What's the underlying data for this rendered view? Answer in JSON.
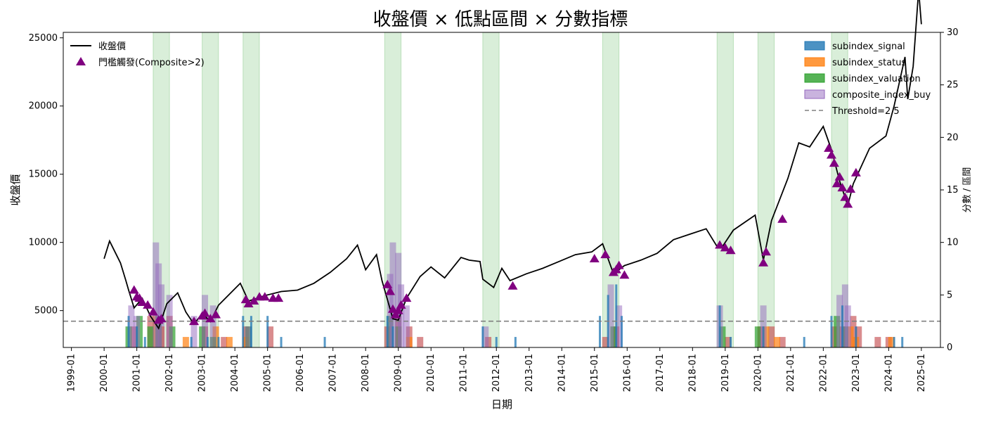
{
  "chart_data": {
    "type": "line",
    "title": "收盤價 × 低點區間 × 分數指標",
    "xlabel": "日期",
    "ylabel_left": "收盤價",
    "ylabel_right": "分數 / 區間",
    "x_ticks": [
      "1999-01",
      "2000-01",
      "2001-01",
      "2002-01",
      "2003-01",
      "2004-01",
      "2005-01",
      "2006-01",
      "2007-01",
      "2008-01",
      "2009-01",
      "2010-01",
      "2011-01",
      "2012-01",
      "2013-01",
      "2014-01",
      "2015-01",
      "2016-01",
      "2017-01",
      "2018-01",
      "2019-01",
      "2020-01",
      "2021-01",
      "2022-01",
      "2023-01",
      "2024-01",
      "2025-01"
    ],
    "xlim": [
      "1998-10-01",
      "2025-08-01"
    ],
    "ylim_left": [
      2300,
      25400
    ],
    "yticks_left": [
      5000,
      10000,
      15000,
      20000,
      25000
    ],
    "ylim_right": [
      0,
      30
    ],
    "yticks_right": [
      0,
      5,
      10,
      15,
      20,
      25,
      30
    ],
    "threshold": 2.5,
    "legend_left": [
      {
        "name": "收盤價",
        "kind": "line",
        "color": "#000000"
      },
      {
        "name": "門檻觸發(Composite>2)",
        "kind": "marker",
        "color": "#800080"
      }
    ],
    "legend_right": [
      {
        "name": "subindex_signal",
        "kind": "patch",
        "color": "#1f77b4"
      },
      {
        "name": "subindex_status",
        "kind": "patch",
        "color": "#ff7f0e"
      },
      {
        "name": "subindex_valuation",
        "kind": "patch",
        "color": "#2ca02c"
      },
      {
        "name": "composite_index_buy",
        "kind": "patch",
        "color": "#9467bd"
      },
      {
        "name": "Threshold=2.5",
        "kind": "dashed",
        "color": "#808080"
      }
    ],
    "low_zones": [
      [
        "2001-07",
        "2002-01"
      ],
      [
        "2003-01",
        "2003-07"
      ],
      [
        "2004-04",
        "2004-10"
      ],
      [
        "2008-08",
        "2009-02"
      ],
      [
        "2011-08",
        "2012-02"
      ],
      [
        "2015-04",
        "2015-10"
      ],
      [
        "2018-10",
        "2019-04"
      ],
      [
        "2020-01",
        "2020-07"
      ],
      [
        "2022-04",
        "2022-10"
      ]
    ],
    "close_series": [
      [
        "2000-01",
        8800
      ],
      [
        "2000-03",
        10100
      ],
      [
        "2000-05",
        9300
      ],
      [
        "2000-07",
        8500
      ],
      [
        "2000-09",
        7200
      ],
      [
        "2000-10",
        6500
      ],
      [
        "2000-12",
        5200
      ],
      [
        "2001-03",
        5900
      ],
      [
        "2001-06",
        4600
      ],
      [
        "2001-09",
        3700
      ],
      [
        "2001-12",
        5500
      ],
      [
        "2002-04",
        6300
      ],
      [
        "2002-07",
        4900
      ],
      [
        "2002-10",
        4000
      ],
      [
        "2003-01",
        4800
      ],
      [
        "2003-04",
        4200
      ],
      [
        "2003-07",
        5400
      ],
      [
        "2003-10",
        6000
      ],
      [
        "2004-03",
        7000
      ],
      [
        "2004-06",
        5700
      ],
      [
        "2004-09",
        5900
      ],
      [
        "2004-12",
        6100
      ],
      [
        "2005-06",
        6400
      ],
      [
        "2005-12",
        6500
      ],
      [
        "2006-06",
        7000
      ],
      [
        "2006-12",
        7800
      ],
      [
        "2007-06",
        8800
      ],
      [
        "2007-10",
        9800
      ],
      [
        "2008-01",
        8000
      ],
      [
        "2008-05",
        9100
      ],
      [
        "2008-07",
        7200
      ],
      [
        "2008-11",
        4400
      ],
      [
        "2009-01",
        4300
      ],
      [
        "2009-04",
        5900
      ],
      [
        "2009-09",
        7500
      ],
      [
        "2010-01",
        8200
      ],
      [
        "2010-06",
        7400
      ],
      [
        "2010-12",
        8900
      ],
      [
        "2011-03",
        8700
      ],
      [
        "2011-07",
        8600
      ],
      [
        "2011-08",
        7300
      ],
      [
        "2011-12",
        6700
      ],
      [
        "2012-03",
        8100
      ],
      [
        "2012-06",
        7200
      ],
      [
        "2012-12",
        7700
      ],
      [
        "2013-06",
        8100
      ],
      [
        "2013-12",
        8600
      ],
      [
        "2014-06",
        9100
      ],
      [
        "2014-12",
        9300
      ],
      [
        "2015-04",
        9900
      ],
      [
        "2015-08",
        7700
      ],
      [
        "2015-12",
        8300
      ],
      [
        "2016-06",
        8700
      ],
      [
        "2016-12",
        9200
      ],
      [
        "2017-06",
        10200
      ],
      [
        "2017-12",
        10600
      ],
      [
        "2018-06",
        11000
      ],
      [
        "2018-10",
        9700
      ],
      [
        "2018-12",
        9700
      ],
      [
        "2019-04",
        10900
      ],
      [
        "2019-12",
        12000
      ],
      [
        "2020-03",
        8700
      ],
      [
        "2020-06",
        11600
      ],
      [
        "2020-12",
        14700
      ],
      [
        "2021-04",
        17300
      ],
      [
        "2021-08",
        17000
      ],
      [
        "2022-01",
        18500
      ],
      [
        "2022-04",
        16800
      ],
      [
        "2022-07",
        14500
      ],
      [
        "2022-10",
        12700
      ],
      [
        "2022-12",
        14300
      ],
      [
        "2023-06",
        16900
      ],
      [
        "2023-12",
        17800
      ],
      [
        "2024-03",
        20000
      ],
      [
        "2024-07",
        23600
      ],
      [
        "2024-08",
        20500
      ],
      [
        "2024-10",
        22900
      ],
      [
        "2024-12",
        28500
      ],
      [
        "2025-01",
        26000
      ]
    ],
    "trigger_markers": [
      [
        "2000-12",
        6500
      ],
      [
        "2001-01",
        6000
      ],
      [
        "2001-02",
        5900
      ],
      [
        "2001-03",
        5600
      ],
      [
        "2001-05",
        5400
      ],
      [
        "2001-07",
        4900
      ],
      [
        "2001-09",
        4300
      ],
      [
        "2001-10",
        4400
      ],
      [
        "2002-10",
        4200
      ],
      [
        "2003-01",
        4600
      ],
      [
        "2003-02",
        4800
      ],
      [
        "2003-04",
        4400
      ],
      [
        "2003-06",
        4700
      ],
      [
        "2004-05",
        5800
      ],
      [
        "2004-06",
        5500
      ],
      [
        "2004-08",
        5700
      ],
      [
        "2004-10",
        6000
      ],
      [
        "2004-12",
        6000
      ],
      [
        "2005-03",
        5900
      ],
      [
        "2005-05",
        5900
      ],
      [
        "2008-09",
        6900
      ],
      [
        "2008-10",
        6400
      ],
      [
        "2008-11",
        5100
      ],
      [
        "2008-12",
        4700
      ],
      [
        "2009-01",
        5000
      ],
      [
        "2009-02",
        5400
      ],
      [
        "2009-04",
        5900
      ],
      [
        "2012-07",
        6800
      ],
      [
        "2015-01",
        8800
      ],
      [
        "2015-05",
        9100
      ],
      [
        "2015-08",
        7800
      ],
      [
        "2015-09",
        8000
      ],
      [
        "2015-10",
        8300
      ],
      [
        "2015-12",
        7600
      ],
      [
        "2018-11",
        9800
      ],
      [
        "2019-01",
        9600
      ],
      [
        "2019-03",
        9400
      ],
      [
        "2020-03",
        8500
      ],
      [
        "2020-04",
        9300
      ],
      [
        "2020-10",
        11700
      ],
      [
        "2022-03",
        16900
      ],
      [
        "2022-04",
        16400
      ],
      [
        "2022-05",
        15800
      ],
      [
        "2022-06",
        14300
      ],
      [
        "2022-07",
        14800
      ],
      [
        "2022-08",
        14000
      ],
      [
        "2022-09",
        13300
      ],
      [
        "2022-10",
        12800
      ],
      [
        "2022-11",
        13900
      ],
      [
        "2023-01",
        15100
      ]
    ],
    "bars": {
      "subindex_signal": [
        [
          "2000-10",
          3
        ],
        [
          "2001-01",
          2
        ],
        [
          "2001-04",
          1
        ],
        [
          "2002-09",
          1
        ],
        [
          "2003-03",
          1
        ],
        [
          "2003-07",
          1
        ],
        [
          "2004-04",
          3
        ],
        [
          "2004-07",
          3
        ],
        [
          "2005-01",
          3
        ],
        [
          "2005-06",
          1
        ],
        [
          "2006-10",
          1
        ],
        [
          "2008-09",
          3
        ],
        [
          "2008-11",
          2
        ],
        [
          "2011-08",
          2
        ],
        [
          "2012-01",
          1
        ],
        [
          "2012-08",
          1
        ],
        [
          "2015-03",
          3
        ],
        [
          "2015-06",
          5
        ],
        [
          "2015-09",
          6
        ],
        [
          "2015-11",
          3
        ],
        [
          "2018-11",
          4
        ],
        [
          "2019-03",
          1
        ],
        [
          "2020-03",
          2
        ],
        [
          "2021-06",
          1
        ],
        [
          "2022-04",
          3
        ],
        [
          "2022-08",
          4
        ],
        [
          "2023-01",
          2
        ],
        [
          "2024-03",
          1
        ],
        [
          "2024-06",
          1
        ]
      ],
      "subindex_status": [
        [
          "2001-08",
          3
        ],
        [
          "2001-10",
          2
        ],
        [
          "2002-07",
          1
        ],
        [
          "2003-06",
          2
        ],
        [
          "2003-11",
          1
        ],
        [
          "2004-05",
          1
        ],
        [
          "2009-01",
          2
        ],
        [
          "2009-05",
          1
        ],
        [
          "2020-04",
          2
        ],
        [
          "2020-08",
          1
        ],
        [
          "2022-11",
          2
        ],
        [
          "2023-01",
          1
        ],
        [
          "2024-02",
          1
        ]
      ],
      "subindex_valuation": [
        [
          "2000-10",
          2
        ],
        [
          "2001-02",
          3
        ],
        [
          "2001-06",
          2
        ],
        [
          "2001-09",
          3
        ],
        [
          "2002-02",
          2
        ],
        [
          "2003-01",
          2
        ],
        [
          "2003-05",
          1
        ],
        [
          "2004-06",
          2
        ],
        [
          "2008-10",
          3
        ],
        [
          "2009-01",
          2
        ],
        [
          "2015-08",
          2
        ],
        [
          "2018-12",
          2
        ],
        [
          "2020-01",
          2
        ],
        [
          "2022-06",
          3
        ],
        [
          "2022-09",
          2
        ]
      ],
      "composite_index_buy": [
        [
          "2000-11",
          4
        ],
        [
          "2001-01",
          3
        ],
        [
          "2001-08",
          10
        ],
        [
          "2001-09",
          8
        ],
        [
          "2001-10",
          6
        ],
        [
          "2002-01",
          5
        ],
        [
          "2002-10",
          3
        ],
        [
          "2003-02",
          5
        ],
        [
          "2003-05",
          4
        ],
        [
          "2004-06",
          2
        ],
        [
          "2008-10",
          7
        ],
        [
          "2008-11",
          10
        ],
        [
          "2009-01",
          9
        ],
        [
          "2009-02",
          6
        ],
        [
          "2009-04",
          4
        ],
        [
          "2011-09",
          2
        ],
        [
          "2015-07",
          6
        ],
        [
          "2015-10",
          4
        ],
        [
          "2018-11",
          4
        ],
        [
          "2020-03",
          4
        ],
        [
          "2022-07",
          5
        ],
        [
          "2022-09",
          6
        ],
        [
          "2022-10",
          4
        ]
      ],
      "low_zone_flag": [
        [
          "2000-12",
          2
        ],
        [
          "2001-06",
          3
        ],
        [
          "2001-10",
          2
        ],
        [
          "2002-01",
          3
        ],
        [
          "2003-02",
          2
        ],
        [
          "2003-09",
          1
        ],
        [
          "2004-05",
          2
        ],
        [
          "2005-02",
          2
        ],
        [
          "2008-09",
          2
        ],
        [
          "2009-01",
          3
        ],
        [
          "2009-05",
          2
        ],
        [
          "2009-09",
          1
        ],
        [
          "2011-10",
          1
        ],
        [
          "2015-05",
          1
        ],
        [
          "2015-09",
          2
        ],
        [
          "2019-02",
          1
        ],
        [
          "2020-02",
          2
        ],
        [
          "2020-06",
          2
        ],
        [
          "2020-10",
          1
        ],
        [
          "2022-05",
          2
        ],
        [
          "2022-08",
          2
        ],
        [
          "2022-12",
          3
        ],
        [
          "2023-02",
          2
        ],
        [
          "2023-09",
          1
        ],
        [
          "2024-01",
          1
        ]
      ]
    }
  }
}
